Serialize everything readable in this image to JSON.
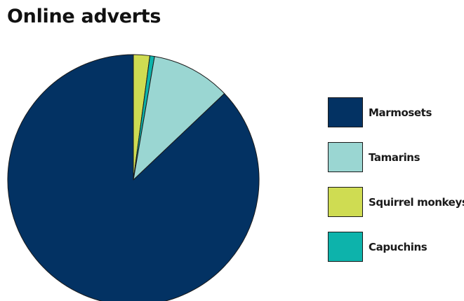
{
  "chart_data": {
    "type": "pie",
    "title": "Online adverts",
    "categories": [
      "Marmosets",
      "Tamarins",
      "Squirrel monkeys",
      "Capuchins"
    ],
    "values": [
      87.1,
      10.2,
      2.1,
      0.6
    ],
    "colors": [
      "#033263",
      "#9ad6d2",
      "#cfdc52",
      "#0db3ab"
    ],
    "start_angle_deg": 0,
    "direction": "clockwise",
    "legend_position": "right"
  }
}
